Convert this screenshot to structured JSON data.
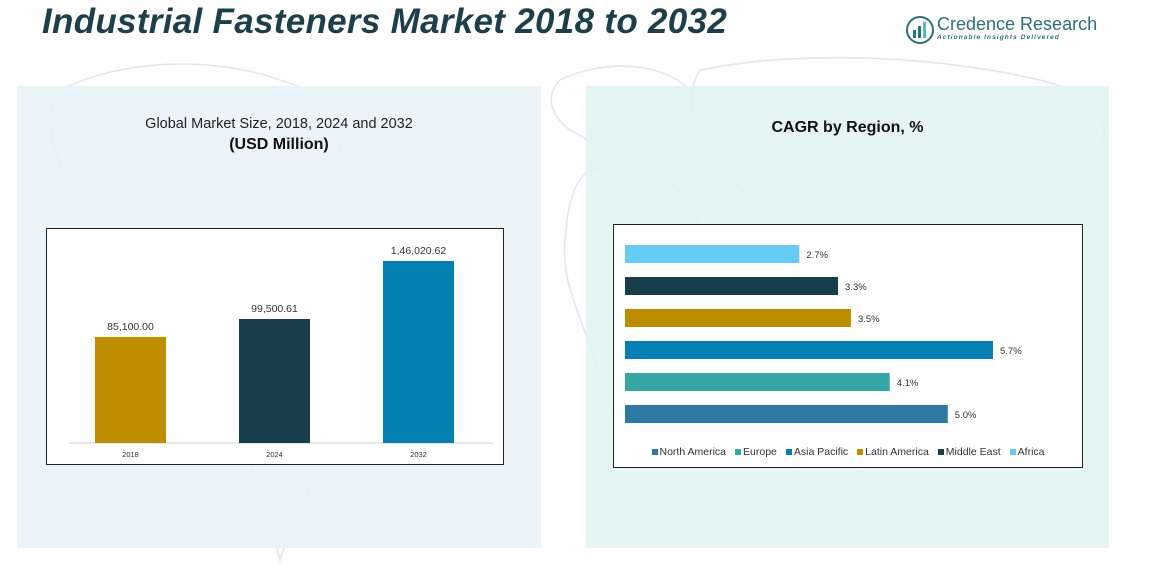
{
  "header": {
    "title": "Industrial Fasteners Market 2018 to 2032",
    "logo_name": "Credence Research",
    "logo_tagline": "Actionable Insights Delivered"
  },
  "chart_data": [
    {
      "type": "bar",
      "title": "Global Market Size, 2018, 2024 and 2032",
      "subtitle": "(USD Million)",
      "categories": [
        "2018",
        "2024",
        "2032"
      ],
      "values": [
        85100.0,
        99500.61,
        146020.62
      ],
      "value_labels": [
        "85,100.00",
        "99,500.61",
        "1,46,020.62"
      ],
      "colors": [
        "#bf8d00",
        "#173d4a",
        "#0580b2"
      ],
      "ylim": [
        0,
        146020.62
      ],
      "grid": false
    },
    {
      "type": "bar",
      "orientation": "horizontal",
      "title": "CAGR by Region, %",
      "categories": [
        "Africa",
        "Middle East",
        "Latin America",
        "Asia Pacific",
        "Europe",
        "North America"
      ],
      "values": [
        2.7,
        3.3,
        3.5,
        5.7,
        4.1,
        5.0
      ],
      "value_labels": [
        "2.7%",
        "3.3%",
        "3.5%",
        "5.7%",
        "4.1%",
        "5.0%"
      ],
      "colors": [
        "#66ccf5",
        "#173d4a",
        "#bf8d00",
        "#0580b2",
        "#35a5a5",
        "#2e79a3"
      ],
      "legend": {
        "placement": "bottom",
        "items": [
          {
            "label": "North America",
            "color": "#2e79a3"
          },
          {
            "label": "Europe",
            "color": "#35a5a5"
          },
          {
            "label": "Asia Pacific",
            "color": "#0580b2"
          },
          {
            "label": "Latin America",
            "color": "#bf8d00"
          },
          {
            "label": "Middle East",
            "color": "#173d4a"
          },
          {
            "label": "Africa",
            "color": "#66ccf5"
          }
        ]
      },
      "grid": false
    }
  ]
}
